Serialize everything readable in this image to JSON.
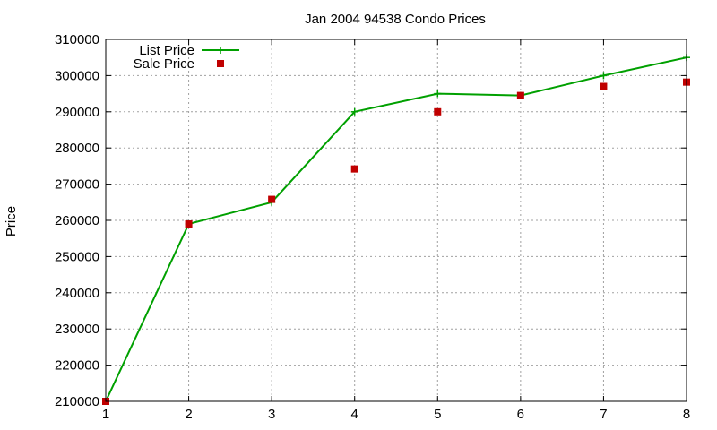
{
  "chart_data": {
    "type": "line",
    "title": "Jan 2004 94538 Condo Prices",
    "xlabel": "",
    "ylabel": "Price",
    "x": [
      1,
      2,
      3,
      4,
      5,
      6,
      7,
      8
    ],
    "xlim": [
      1,
      8
    ],
    "ylim": [
      210000,
      310000
    ],
    "x_ticks": [
      "1",
      "2",
      "3",
      "4",
      "5",
      "6",
      "7",
      "8"
    ],
    "y_ticks": [
      "210000",
      "220000",
      "230000",
      "240000",
      "250000",
      "260000",
      "270000",
      "280000",
      "290000",
      "300000",
      "310000"
    ],
    "grid": true,
    "legend_position": "top-left",
    "series": [
      {
        "name": "List Price",
        "style": "line-with-plus-markers",
        "color": "#00a000",
        "values": [
          210000,
          259000,
          265000,
          290000,
          295000,
          294500,
          300000,
          305000
        ]
      },
      {
        "name": "Sale Price",
        "style": "square-markers",
        "color": "#c00000",
        "values": [
          210000,
          259000,
          265800,
          274200,
          290000,
          294500,
          297000,
          298200
        ]
      }
    ]
  }
}
